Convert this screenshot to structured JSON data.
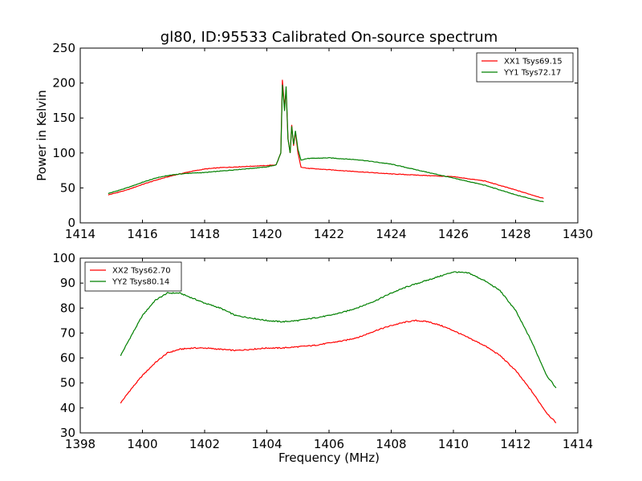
{
  "figure": {
    "title": "gl80, ID:95533 Calibrated On-source spectrum"
  },
  "colors": {
    "xx": "#ff0000",
    "yy": "#008000",
    "axis": "#000000",
    "background": "#ffffff"
  },
  "chart_data": [
    {
      "type": "line",
      "title": "gl80, ID:95533 Calibrated On-source spectrum",
      "xlabel": "",
      "ylabel": "Power in Kelvin",
      "xlim": [
        1414,
        1430
      ],
      "ylim": [
        0,
        250
      ],
      "xticks": [
        1414,
        1416,
        1418,
        1420,
        1422,
        1424,
        1426,
        1428,
        1430
      ],
      "yticks": [
        0,
        50,
        100,
        150,
        200,
        250
      ],
      "grid": false,
      "legend_position": "top-right",
      "series": [
        {
          "name": "XX1 Tsys69.15",
          "color": "#ff0000",
          "points": [
            [
              1414.9,
              40
            ],
            [
              1415.5,
              47
            ],
            [
              1416.0,
              55
            ],
            [
              1416.5,
              62
            ],
            [
              1417.0,
              68
            ],
            [
              1417.5,
              73
            ],
            [
              1418.0,
              77
            ],
            [
              1418.5,
              79
            ],
            [
              1419.0,
              80
            ],
            [
              1419.5,
              81
            ],
            [
              1420.0,
              82
            ],
            [
              1420.3,
              83
            ],
            [
              1420.45,
              100
            ],
            [
              1420.5,
              205
            ],
            [
              1420.57,
              165
            ],
            [
              1420.62,
              190
            ],
            [
              1420.68,
              120
            ],
            [
              1420.75,
              100
            ],
            [
              1420.8,
              140
            ],
            [
              1420.86,
              110
            ],
            [
              1420.92,
              130
            ],
            [
              1421.0,
              100
            ],
            [
              1421.1,
              80
            ],
            [
              1421.3,
              78
            ],
            [
              1422.0,
              76
            ],
            [
              1423.0,
              73
            ],
            [
              1424.0,
              70
            ],
            [
              1425.0,
              68
            ],
            [
              1426.0,
              66
            ],
            [
              1427.0,
              60
            ],
            [
              1428.0,
              47
            ],
            [
              1428.9,
              35
            ]
          ]
        },
        {
          "name": "YY1 Tsys72.17",
          "color": "#008000",
          "points": [
            [
              1414.9,
              42
            ],
            [
              1415.5,
              50
            ],
            [
              1416.0,
              58
            ],
            [
              1416.5,
              65
            ],
            [
              1417.0,
              69
            ],
            [
              1417.5,
              71
            ],
            [
              1418.0,
              72
            ],
            [
              1418.5,
              74
            ],
            [
              1419.0,
              76
            ],
            [
              1419.5,
              78
            ],
            [
              1420.0,
              80
            ],
            [
              1420.3,
              83
            ],
            [
              1420.45,
              100
            ],
            [
              1420.5,
              198
            ],
            [
              1420.57,
              160
            ],
            [
              1420.62,
              195
            ],
            [
              1420.68,
              120
            ],
            [
              1420.75,
              100
            ],
            [
              1420.8,
              138
            ],
            [
              1420.86,
              112
            ],
            [
              1420.92,
              132
            ],
            [
              1421.0,
              105
            ],
            [
              1421.1,
              90
            ],
            [
              1421.3,
              92
            ],
            [
              1422.0,
              93
            ],
            [
              1423.0,
              90
            ],
            [
              1424.0,
              84
            ],
            [
              1425.0,
              74
            ],
            [
              1426.0,
              64
            ],
            [
              1427.0,
              54
            ],
            [
              1428.0,
              40
            ],
            [
              1428.9,
              30
            ]
          ]
        }
      ]
    },
    {
      "type": "line",
      "title": "",
      "xlabel": "Frequency (MHz)",
      "ylabel": "",
      "xlim": [
        1398,
        1414
      ],
      "ylim": [
        30,
        100
      ],
      "xticks": [
        1398,
        1400,
        1402,
        1404,
        1406,
        1408,
        1410,
        1412,
        1414
      ],
      "yticks": [
        30,
        40,
        50,
        60,
        70,
        80,
        90,
        100
      ],
      "grid": false,
      "legend_position": "top-left",
      "series": [
        {
          "name": "XX2 Tsys62.70",
          "color": "#ff0000",
          "points": [
            [
              1399.3,
              42
            ],
            [
              1399.6,
              47
            ],
            [
              1400.0,
              53
            ],
            [
              1400.4,
              58
            ],
            [
              1400.8,
              62
            ],
            [
              1401.2,
              63.5
            ],
            [
              1401.6,
              64
            ],
            [
              1402.0,
              64
            ],
            [
              1402.5,
              63.5
            ],
            [
              1403.0,
              63
            ],
            [
              1403.5,
              63.5
            ],
            [
              1404.0,
              64
            ],
            [
              1404.5,
              64
            ],
            [
              1405.0,
              64.5
            ],
            [
              1405.5,
              65
            ],
            [
              1406.0,
              66
            ],
            [
              1406.5,
              67
            ],
            [
              1407.0,
              68.5
            ],
            [
              1407.5,
              71
            ],
            [
              1408.0,
              73
            ],
            [
              1408.5,
              74.5
            ],
            [
              1408.8,
              75
            ],
            [
              1409.2,
              74.5
            ],
            [
              1409.6,
              73
            ],
            [
              1410.0,
              71
            ],
            [
              1410.5,
              68
            ],
            [
              1411.0,
              65
            ],
            [
              1411.5,
              61
            ],
            [
              1412.0,
              55
            ],
            [
              1412.5,
              47
            ],
            [
              1413.0,
              38
            ],
            [
              1413.3,
              34
            ]
          ]
        },
        {
          "name": "YY2 Tsys80.14",
          "color": "#008000",
          "points": [
            [
              1399.3,
              61
            ],
            [
              1399.6,
              68
            ],
            [
              1400.0,
              77
            ],
            [
              1400.4,
              83
            ],
            [
              1400.8,
              86
            ],
            [
              1401.2,
              86
            ],
            [
              1401.6,
              84
            ],
            [
              1402.0,
              82
            ],
            [
              1402.5,
              80
            ],
            [
              1403.0,
              77
            ],
            [
              1403.5,
              76
            ],
            [
              1404.0,
              75
            ],
            [
              1404.5,
              74.5
            ],
            [
              1405.0,
              75
            ],
            [
              1405.5,
              76
            ],
            [
              1406.0,
              77
            ],
            [
              1406.5,
              78.5
            ],
            [
              1407.0,
              80.5
            ],
            [
              1407.5,
              83
            ],
            [
              1408.0,
              86
            ],
            [
              1408.5,
              88.5
            ],
            [
              1409.0,
              90.5
            ],
            [
              1409.5,
              92.5
            ],
            [
              1410.0,
              94.5
            ],
            [
              1410.5,
              94
            ],
            [
              1411.0,
              91
            ],
            [
              1411.5,
              87
            ],
            [
              1412.0,
              79
            ],
            [
              1412.5,
              67
            ],
            [
              1413.0,
              53
            ],
            [
              1413.3,
              48
            ]
          ]
        }
      ]
    }
  ]
}
